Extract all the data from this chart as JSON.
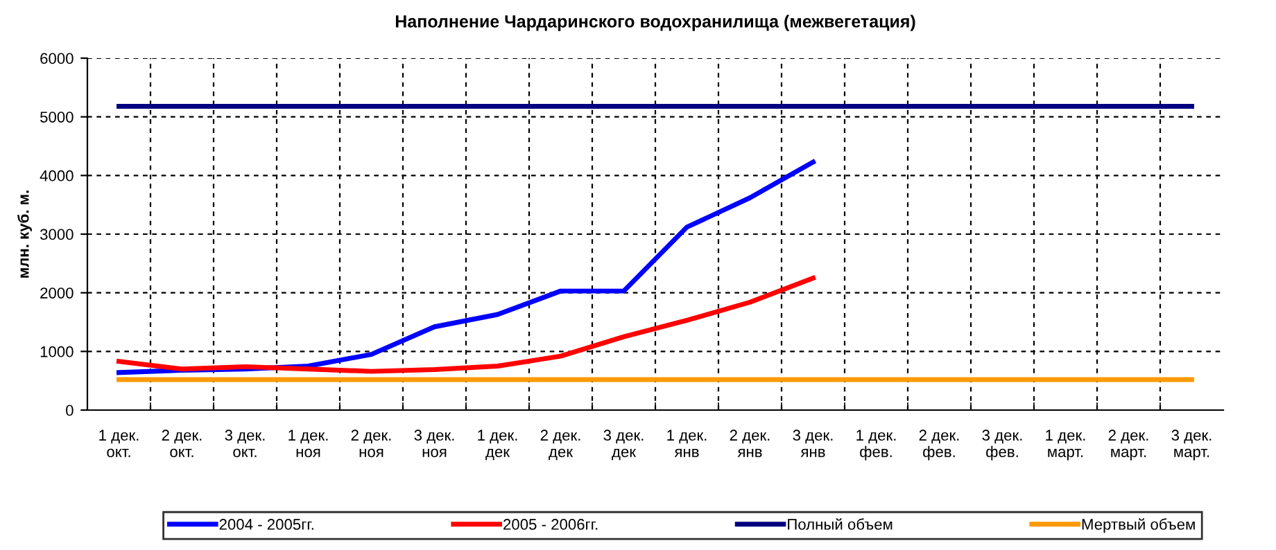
{
  "chart_data": {
    "type": "line",
    "title": "Наполнение Чардаринского водохранилища (межвегетация)",
    "ylabel": "млн. куб. м.",
    "categories": [
      "1 дек.\nокт.",
      "2 дек.\nокт.",
      "3 дек.\nокт.",
      "1 дек.\nноя",
      "2 дек.\nноя",
      "3 дек.\nноя",
      "1 дек.\nдек",
      "2 дек.\nдек",
      "3 дек.\nдек",
      "1 дек.\nянв",
      "2 дек.\nянв",
      "3 дек.\nянв",
      "1 дек.\nфев.",
      "2 дек.\nфев.",
      "3 дек.\nфев.",
      "1 дек.\nмарт.",
      "2 дек.\nмарт.",
      "3 дек.\nмарт."
    ],
    "series": [
      {
        "name": "2004 - 2005гг.",
        "color": "#0000ff",
        "values": [
          640,
          680,
          700,
          750,
          950,
          1420,
          1630,
          2030,
          2030,
          3120,
          3620,
          4230,
          null,
          null,
          null,
          null,
          null,
          null
        ]
      },
      {
        "name": "2005 - 2006гг.",
        "color": "#ff0000",
        "values": [
          830,
          700,
          740,
          700,
          660,
          690,
          750,
          920,
          1250,
          1530,
          1840,
          2250,
          null,
          null,
          null,
          null,
          null,
          null
        ]
      },
      {
        "name": "Полный объем",
        "color": "#000080",
        "values": [
          5180,
          5180,
          5180,
          5180,
          5180,
          5180,
          5180,
          5180,
          5180,
          5180,
          5180,
          5180,
          5180,
          5180,
          5180,
          5180,
          5180,
          5180
        ]
      },
      {
        "name": "Мертвый объем",
        "color": "#ff9900",
        "values": [
          520,
          520,
          520,
          520,
          520,
          520,
          520,
          520,
          520,
          520,
          520,
          520,
          520,
          520,
          520,
          520,
          520,
          520
        ]
      }
    ],
    "ylim": [
      0,
      6000
    ],
    "yticks": [
      0,
      1000,
      2000,
      3000,
      4000,
      5000,
      6000
    ],
    "grid": true,
    "legend": "bottom",
    "marker": "none",
    "line_style": "solid"
  }
}
